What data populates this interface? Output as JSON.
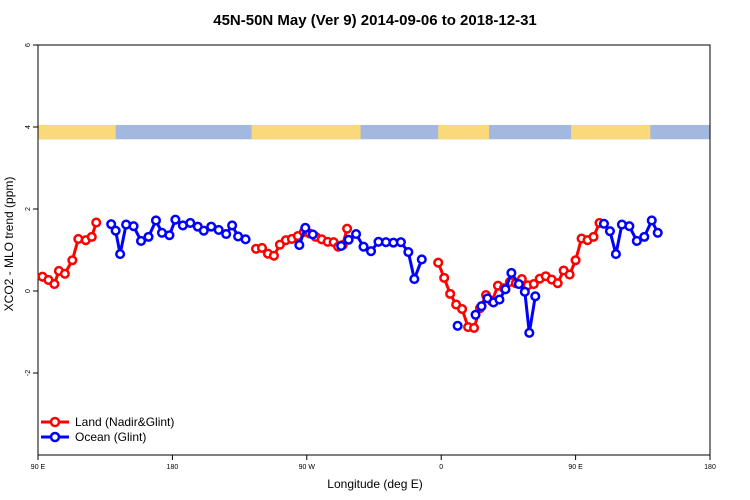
{
  "chart_data": {
    "type": "line",
    "title": "45N-50N May (Ver 9)   2014-09-06 to 2018-12-31",
    "xlabel": "Longitude (deg E)",
    "ylabel": "XCO2 - MLO trend (ppm)",
    "xlim": [
      90,
      540
    ],
    "ylim": [
      -4,
      6
    ],
    "x_ticks": [
      {
        "value": 90,
        "label": "90 E"
      },
      {
        "value": 180,
        "label": "180"
      },
      {
        "value": 270,
        "label": "90 W"
      },
      {
        "value": 360,
        "label": "0"
      },
      {
        "value": 450,
        "label": "90 E"
      },
      {
        "value": 540,
        "label": "180"
      }
    ],
    "y_ticks": [
      {
        "value": -2,
        "label": "-2"
      },
      {
        "value": 0,
        "label": "0"
      },
      {
        "value": 2,
        "label": "2"
      },
      {
        "value": 4,
        "label": "4"
      },
      {
        "value": 6,
        "label": "6"
      }
    ],
    "land_ocean_band": {
      "y_range": [
        3.7,
        4.05
      ],
      "land_color": "#fad97a",
      "ocean_color": "#a3b8de",
      "land_lon_ranges": [
        [
          90,
          142
        ],
        [
          233,
          306
        ],
        [
          358,
          392
        ],
        [
          447,
          500
        ]
      ]
    },
    "legend": {
      "position": "bottom-left"
    },
    "series": [
      {
        "name": "Land (Nadir&Glint)",
        "color": "#ff0000",
        "points": [
          [
            93,
            0.35
          ],
          [
            97,
            0.27
          ],
          [
            101,
            0.17
          ],
          [
            104,
            0.49
          ],
          [
            108,
            0.42
          ],
          [
            113,
            0.75
          ],
          [
            117,
            1.27
          ],
          [
            122,
            1.24
          ],
          [
            126,
            1.32
          ],
          [
            129,
            1.67
          ],
          [
            236,
            1.03
          ],
          [
            240,
            1.05
          ],
          [
            244,
            0.91
          ],
          [
            248,
            0.86
          ],
          [
            252,
            1.13
          ],
          [
            256,
            1.24
          ],
          [
            260,
            1.27
          ],
          [
            264,
            1.34
          ],
          [
            268,
            1.44
          ],
          [
            272,
            1.4
          ],
          [
            276,
            1.32
          ],
          [
            280,
            1.26
          ],
          [
            284,
            1.2
          ],
          [
            288,
            1.19
          ],
          [
            291,
            1.08
          ],
          [
            294,
            1.12
          ],
          [
            297,
            1.52
          ],
          [
            358,
            0.69
          ],
          [
            362,
            0.32
          ],
          [
            366,
            -0.07
          ],
          [
            370,
            -0.33
          ],
          [
            374,
            -0.44
          ],
          [
            378,
            -0.88
          ],
          [
            382,
            -0.9
          ],
          [
            386,
            -0.42
          ],
          [
            390,
            -0.1
          ],
          [
            394,
            -0.25
          ],
          [
            398,
            0.13
          ],
          [
            402,
            0.07
          ],
          [
            406,
            0.22
          ],
          [
            410,
            0.19
          ],
          [
            414,
            0.29
          ],
          [
            418,
            0.14
          ],
          [
            422,
            0.17
          ],
          [
            426,
            0.3
          ],
          [
            430,
            0.36
          ],
          [
            434,
            0.28
          ],
          [
            438,
            0.19
          ],
          [
            442,
            0.5
          ],
          [
            446,
            0.4
          ],
          [
            450,
            0.75
          ],
          [
            454,
            1.28
          ],
          [
            458,
            1.24
          ],
          [
            462,
            1.32
          ],
          [
            466,
            1.66
          ]
        ]
      },
      {
        "name": "Ocean (Glint)",
        "color": "#0000ff",
        "points": [
          [
            139,
            1.63
          ],
          [
            142,
            1.47
          ],
          [
            145,
            0.9
          ],
          [
            149,
            1.62
          ],
          [
            154,
            1.58
          ],
          [
            159,
            1.22
          ],
          [
            164,
            1.32
          ],
          [
            169,
            1.72
          ],
          [
            173,
            1.42
          ],
          [
            178,
            1.36
          ],
          [
            182,
            1.74
          ],
          [
            187,
            1.6
          ],
          [
            192,
            1.66
          ],
          [
            197,
            1.57
          ],
          [
            201,
            1.47
          ],
          [
            206,
            1.57
          ],
          [
            211,
            1.49
          ],
          [
            216,
            1.39
          ],
          [
            220,
            1.6
          ],
          [
            224,
            1.33
          ],
          [
            229,
            1.26
          ],
          [
            265,
            1.12
          ],
          [
            269,
            1.54
          ],
          [
            274,
            1.38
          ],
          [
            293,
            1.1
          ],
          [
            298,
            1.25
          ],
          [
            303,
            1.39
          ],
          [
            308,
            1.08
          ],
          [
            313,
            0.97
          ],
          [
            318,
            1.2
          ],
          [
            323,
            1.19
          ],
          [
            328,
            1.18
          ],
          [
            333,
            1.19
          ],
          [
            338,
            0.95
          ],
          [
            342,
            0.29
          ],
          [
            347,
            0.77
          ],
          [
            371,
            -0.85
          ],
          [
            383,
            -0.58
          ],
          [
            387,
            -0.37
          ],
          [
            391,
            -0.18
          ],
          [
            395,
            -0.28
          ],
          [
            399,
            -0.21
          ],
          [
            403,
            0.04
          ],
          [
            407,
            0.44
          ],
          [
            412,
            0.17
          ],
          [
            416,
            -0.02
          ],
          [
            419,
            -1.02
          ],
          [
            423,
            -0.13
          ],
          [
            469,
            1.64
          ],
          [
            473,
            1.46
          ],
          [
            477,
            0.9
          ],
          [
            481,
            1.62
          ],
          [
            486,
            1.58
          ],
          [
            491,
            1.22
          ],
          [
            496,
            1.32
          ],
          [
            501,
            1.72
          ],
          [
            505,
            1.42
          ]
        ]
      }
    ]
  }
}
